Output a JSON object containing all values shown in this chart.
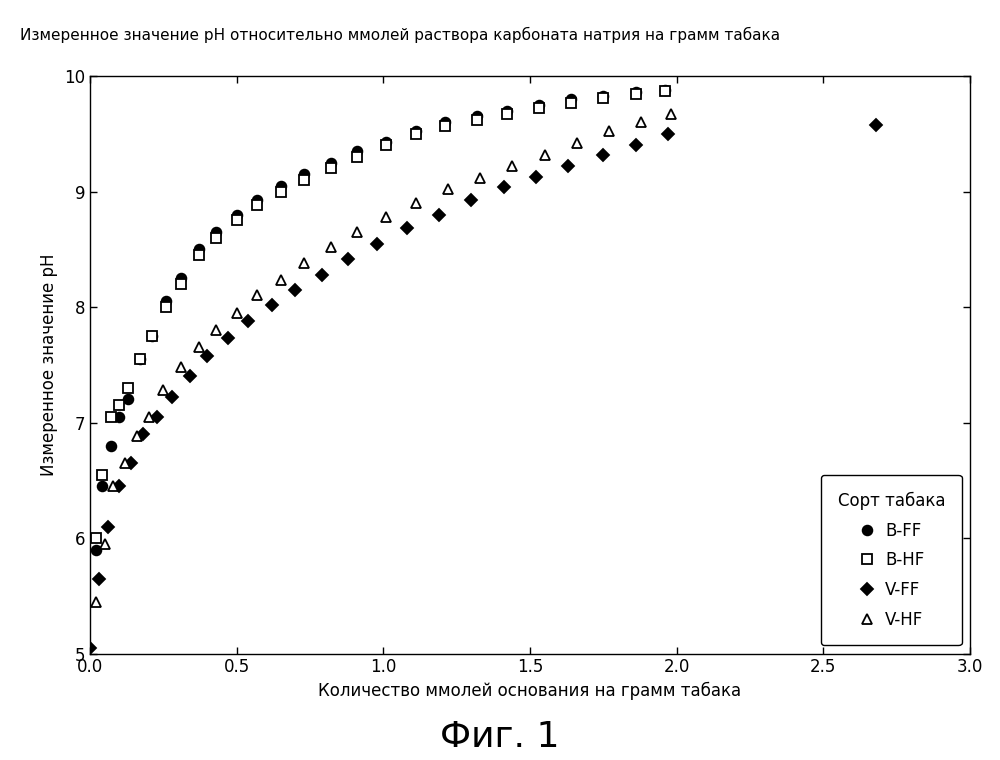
{
  "title": "Измеренное значение pH относительно ммолей раствора карбоната натрия на грамм табака",
  "xlabel": "Количество ммолей основания на грамм табака",
  "ylabel": "Измеренное значение pH",
  "xlim": [
    0,
    3.0
  ],
  "ylim": [
    5,
    10
  ],
  "xticks": [
    0.0,
    0.5,
    1.0,
    1.5,
    2.0,
    2.5,
    3.0
  ],
  "yticks": [
    5,
    6,
    7,
    8,
    9,
    10
  ],
  "fig_caption": "Фиг. 1",
  "background_color": "#ffffff",
  "legend_title": "Сорт табака",
  "series": {
    "B-FF": {
      "markersize": 7,
      "x": [
        0.02,
        0.04,
        0.07,
        0.1,
        0.13,
        0.17,
        0.21,
        0.26,
        0.31,
        0.37,
        0.43,
        0.5,
        0.57,
        0.65,
        0.73,
        0.82,
        0.91,
        1.01,
        1.11,
        1.21,
        1.32,
        1.42,
        1.53,
        1.64,
        1.75,
        1.86,
        1.96
      ],
      "y": [
        5.9,
        6.45,
        6.8,
        7.05,
        7.2,
        7.55,
        7.75,
        8.05,
        8.25,
        8.5,
        8.65,
        8.8,
        8.93,
        9.05,
        9.15,
        9.25,
        9.35,
        9.43,
        9.52,
        9.6,
        9.65,
        9.7,
        9.75,
        9.8,
        9.83,
        9.86,
        9.88
      ]
    },
    "B-HF": {
      "markersize": 7,
      "x": [
        0.02,
        0.04,
        0.07,
        0.1,
        0.13,
        0.17,
        0.21,
        0.26,
        0.31,
        0.37,
        0.43,
        0.5,
        0.57,
        0.65,
        0.73,
        0.82,
        0.91,
        1.01,
        1.11,
        1.21,
        1.32,
        1.42,
        1.53,
        1.64,
        1.75,
        1.86,
        1.96
      ],
      "y": [
        6.0,
        6.55,
        7.05,
        7.15,
        7.3,
        7.55,
        7.75,
        8.0,
        8.2,
        8.45,
        8.6,
        8.75,
        8.88,
        9.0,
        9.1,
        9.2,
        9.3,
        9.4,
        9.5,
        9.57,
        9.62,
        9.67,
        9.72,
        9.77,
        9.81,
        9.84,
        9.87
      ]
    },
    "V-FF": {
      "markersize": 6,
      "x": [
        0.0,
        0.03,
        0.06,
        0.1,
        0.14,
        0.18,
        0.23,
        0.28,
        0.34,
        0.4,
        0.47,
        0.54,
        0.62,
        0.7,
        0.79,
        0.88,
        0.98,
        1.08,
        1.19,
        1.3,
        1.41,
        1.52,
        1.63,
        1.75,
        1.86,
        1.97,
        2.68
      ],
      "y": [
        5.05,
        5.65,
        6.1,
        6.45,
        6.65,
        6.9,
        7.05,
        7.22,
        7.4,
        7.58,
        7.73,
        7.88,
        8.02,
        8.15,
        8.28,
        8.42,
        8.55,
        8.68,
        8.8,
        8.93,
        9.04,
        9.13,
        9.22,
        9.32,
        9.4,
        9.5,
        9.58
      ]
    },
    "V-HF": {
      "markersize": 7,
      "x": [
        0.02,
        0.05,
        0.08,
        0.12,
        0.16,
        0.2,
        0.25,
        0.31,
        0.37,
        0.43,
        0.5,
        0.57,
        0.65,
        0.73,
        0.82,
        0.91,
        1.01,
        1.11,
        1.22,
        1.33,
        1.44,
        1.55,
        1.66,
        1.77,
        1.88,
        1.98
      ],
      "y": [
        5.45,
        5.95,
        6.45,
        6.65,
        6.88,
        7.05,
        7.28,
        7.48,
        7.65,
        7.8,
        7.95,
        8.1,
        8.23,
        8.38,
        8.52,
        8.65,
        8.78,
        8.9,
        9.02,
        9.12,
        9.22,
        9.32,
        9.42,
        9.52,
        9.6,
        9.67
      ]
    }
  },
  "marker_styles": {
    "B-FF": {
      "marker": "o",
      "mfc": "black",
      "mec": "black"
    },
    "B-HF": {
      "marker": "s",
      "mfc": "white",
      "mec": "black"
    },
    "V-FF": {
      "marker": "D",
      "mfc": "black",
      "mec": "black"
    },
    "V-HF": {
      "marker": "^",
      "mfc": "white",
      "mec": "black"
    }
  }
}
